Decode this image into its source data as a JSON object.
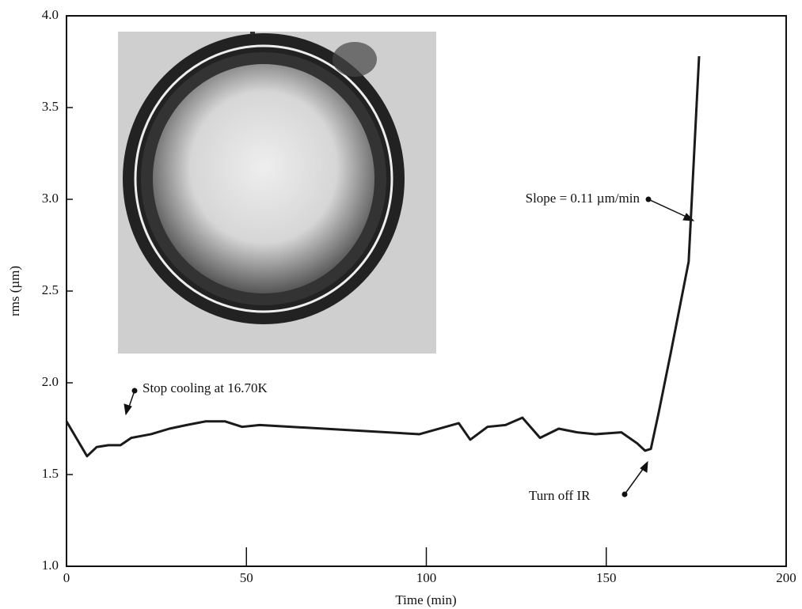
{
  "chart_data": {
    "type": "line",
    "x_label": "Time (min)",
    "y_label": "rms (µm)",
    "x": [
      0,
      5.7,
      8.4,
      11.7,
      15,
      18,
      23.5,
      28.6,
      33.4,
      38.7,
      44,
      48.8,
      53.7,
      98.1,
      109,
      112.2,
      117,
      122,
      126.7,
      131.6,
      136.8,
      141.9,
      147,
      154.2,
      158.6,
      160.8,
      162.4,
      164.6,
      168,
      172.9,
      175.8
    ],
    "values": [
      1.79,
      1.6,
      1.65,
      1.66,
      1.66,
      1.7,
      1.72,
      1.75,
      1.77,
      1.79,
      1.79,
      1.76,
      1.77,
      1.72,
      1.78,
      1.69,
      1.76,
      1.77,
      1.81,
      1.7,
      1.75,
      1.73,
      1.72,
      1.73,
      1.67,
      1.63,
      1.64,
      1.84,
      2.17,
      2.66,
      3.78
    ],
    "color": "#1a1a1a",
    "xlim": [
      0,
      200
    ],
    "xticks": [
      0,
      50,
      100,
      150,
      200
    ],
    "ylim": [
      1.0,
      4.0
    ],
    "yticks": [
      {
        "value": 1.0,
        "label": "1.0"
      },
      1.5,
      {
        "value": 2.0,
        "label": "2.0"
      },
      2.5,
      {
        "value": 3.0,
        "label": "3.0"
      },
      3.5,
      {
        "value": 4.0,
        "label": "4.0"
      }
    ],
    "annotations": [
      "Stop cooling at 16.70K",
      "Slope = 0.11 µm/min",
      "Turn off IR"
    ]
  }
}
